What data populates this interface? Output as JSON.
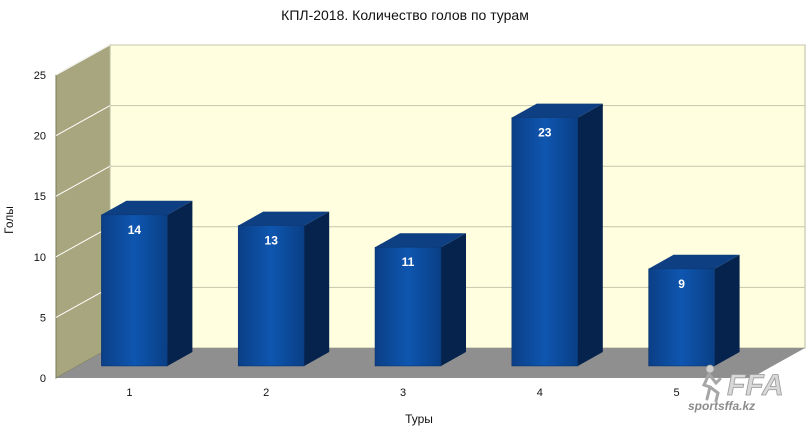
{
  "chart_data": {
    "type": "bar",
    "title": "КПЛ-2018. Количество голов по турам",
    "xlabel": "Туры",
    "ylabel": "Голы",
    "categories": [
      "1",
      "2",
      "3",
      "4",
      "5"
    ],
    "values": [
      14,
      13,
      11,
      23,
      9
    ],
    "ylim": [
      0,
      25
    ],
    "yticks": [
      "0",
      "5",
      "10",
      "15",
      "20",
      "25"
    ],
    "grid": true,
    "legend": "none",
    "colors": {
      "bar_front": "#0a4a9a",
      "bar_side": "#06234d",
      "bar_top": "#0d3f82",
      "back_wall": "#ffffe0",
      "side_wall": "#a8a67e",
      "floor": "#8f8f8f"
    }
  },
  "watermark": {
    "logo_text": "FFA",
    "site_text": "sportsffa.kz"
  }
}
